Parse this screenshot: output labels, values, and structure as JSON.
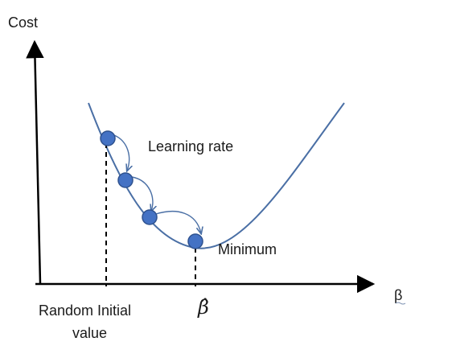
{
  "diagram": {
    "y_axis_label": "Cost",
    "x_axis_label": "β",
    "learning_rate_label": "Learning rate",
    "minimum_label": "Minimum",
    "initial_value_label_line1": "Random Initial",
    "initial_value_label_line2": "value",
    "optimum_label": "β̂",
    "colors": {
      "curve": "#4a6fa5",
      "point_fill": "#4472c4",
      "point_stroke": "#2f528f",
      "axis": "#000000",
      "text": "#1a1a1a"
    }
  }
}
